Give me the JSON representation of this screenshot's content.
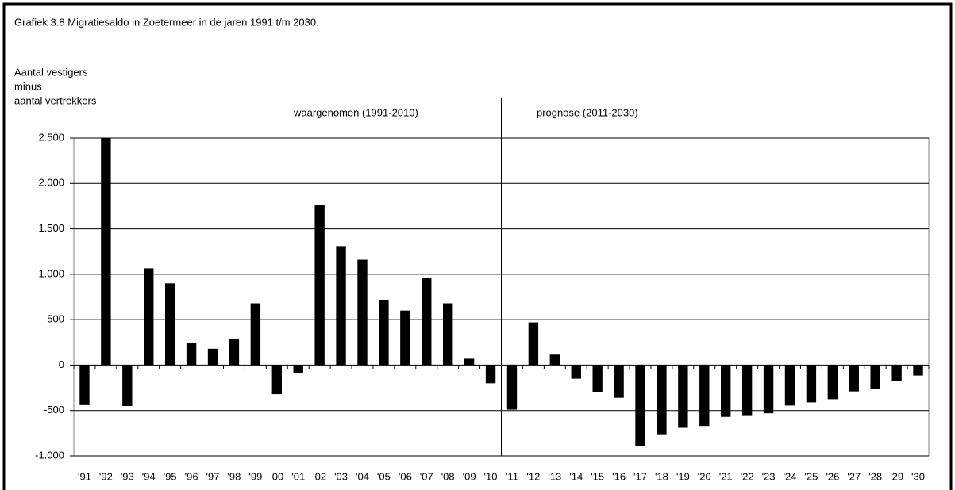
{
  "chart_data": {
    "type": "bar",
    "title": "Grafiek 3.8  Migratiesaldo  in Zoetermeer  in de jaren  1991  t/m  2030.",
    "y_label": [
      "Aantal vestigers",
      "minus",
      "aantal vertrekkers"
    ],
    "annotations": [
      "waargenomen  (1991-2010)",
      "prognose  (2011-2030)"
    ],
    "categories": [
      "'91",
      "'92",
      "'93",
      "'94",
      "'95",
      "'96",
      "'97",
      "'98",
      "'99",
      "'00",
      "'01",
      "'02",
      "'03",
      "'04",
      "'05",
      "'06",
      "'07",
      "'08",
      "'09",
      "'10",
      "'11",
      "'12",
      "'13",
      "'14",
      "'15",
      "'16",
      "'17",
      "'18",
      "'19",
      "'20",
      "'21",
      "'22",
      "'23",
      "'24",
      "'25",
      "'26",
      "'27",
      "'28",
      "'29",
      "'30"
    ],
    "values": [
      -440,
      2500,
      -450,
      1065,
      900,
      245,
      180,
      290,
      680,
      -320,
      -90,
      1760,
      1310,
      1160,
      720,
      600,
      960,
      680,
      70,
      -200,
      -490,
      470,
      115,
      -150,
      -300,
      -360,
      -890,
      -770,
      -690,
      -670,
      -570,
      -560,
      -530,
      -445,
      -410,
      -375,
      -290,
      -260,
      -175,
      -115
    ],
    "color": "#000000",
    "ylim": [
      -1000,
      2500
    ],
    "yticks": [
      {
        "value": -1000,
        "label": "-1.000"
      },
      -500,
      0,
      500,
      {
        "value": 1000,
        "label": "1.000"
      },
      {
        "value": 1500,
        "label": "1.500"
      },
      {
        "value": 2000,
        "label": "2.000"
      },
      {
        "value": 2500,
        "label": "2.500"
      }
    ],
    "grid": true
  }
}
